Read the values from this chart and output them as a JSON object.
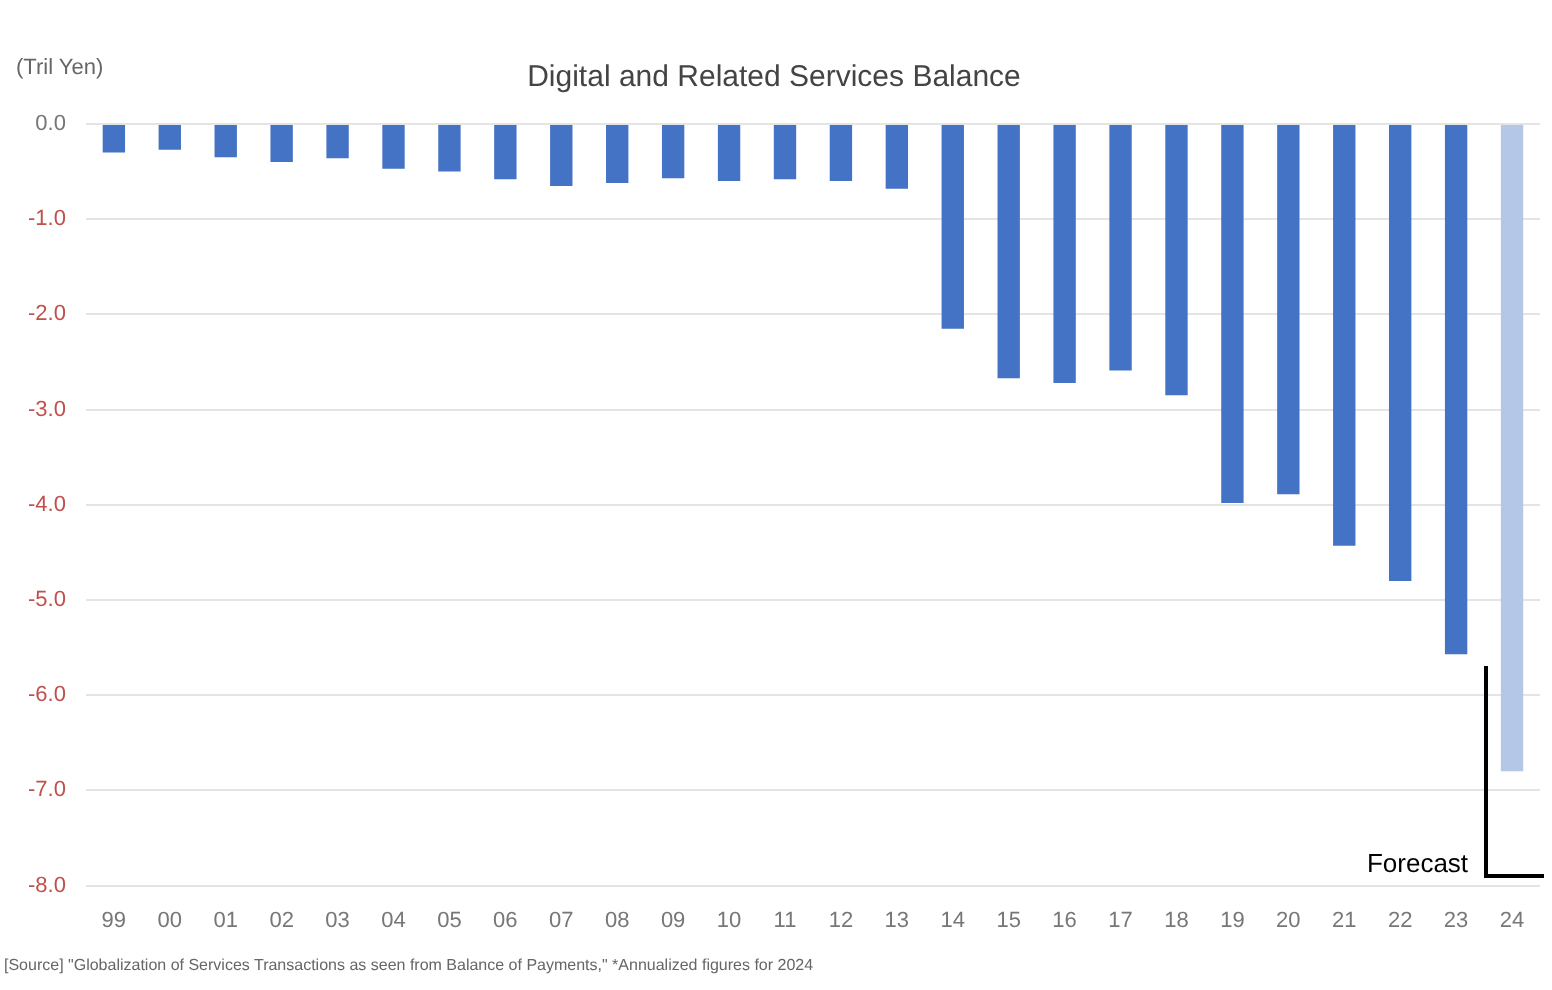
{
  "chart_data": {
    "type": "bar",
    "title": "Digital and Related Services Balance",
    "ylabel": "(Tril Yen)",
    "categories": [
      "99",
      "00",
      "01",
      "02",
      "03",
      "04",
      "05",
      "06",
      "07",
      "08",
      "09",
      "10",
      "11",
      "12",
      "13",
      "14",
      "15",
      "16",
      "17",
      "18",
      "19",
      "20",
      "21",
      "22",
      "23",
      "24"
    ],
    "values": [
      -0.3,
      -0.27,
      -0.35,
      -0.4,
      -0.36,
      -0.47,
      -0.5,
      -0.58,
      -0.65,
      -0.62,
      -0.57,
      -0.6,
      -0.58,
      -0.6,
      -0.68,
      -2.15,
      -2.67,
      -2.72,
      -2.59,
      -2.85,
      -3.98,
      -3.89,
      -4.43,
      -4.8,
      -5.57,
      -6.8
    ],
    "colors": [
      "#4472c4",
      "#4472c4",
      "#4472c4",
      "#4472c4",
      "#4472c4",
      "#4472c4",
      "#4472c4",
      "#4472c4",
      "#4472c4",
      "#4472c4",
      "#4472c4",
      "#4472c4",
      "#4472c4",
      "#4472c4",
      "#4472c4",
      "#4472c4",
      "#4472c4",
      "#4472c4",
      "#4472c4",
      "#4472c4",
      "#4472c4",
      "#4472c4",
      "#4472c4",
      "#4472c4",
      "#4472c4",
      "#b4c7e7"
    ],
    "ylim": [
      -8,
      0
    ],
    "yticks": [
      {
        "value": 0,
        "label": "0.0"
      },
      {
        "value": -1,
        "label": "-1.0"
      },
      {
        "value": -2,
        "label": "-2.0"
      },
      {
        "value": -3,
        "label": "-3.0"
      },
      {
        "value": -4,
        "label": "-4.0"
      },
      {
        "value": -5,
        "label": "-5.0"
      },
      {
        "value": -6,
        "label": "-6.0"
      },
      {
        "value": -7,
        "label": "-7.0"
      },
      {
        "value": -8,
        "label": "-8.0"
      }
    ],
    "grid": "y",
    "legend": false,
    "annotations": [
      "Forecast",
      "[Source] \"Globalization of Services Transactions as seen from Balance of Payments,\" *Annualized figures for 2024"
    ]
  }
}
